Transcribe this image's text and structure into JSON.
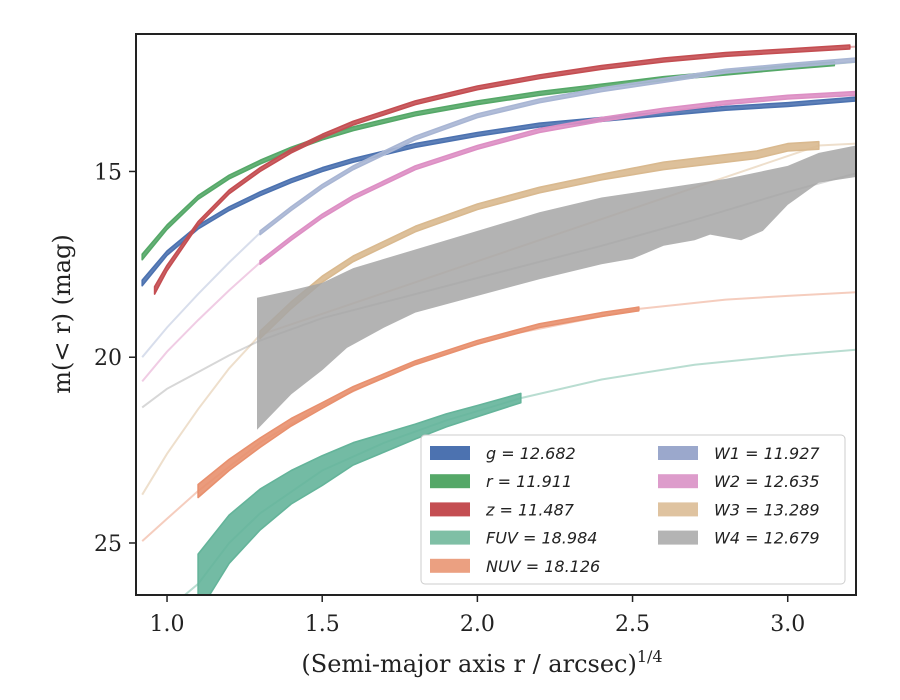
{
  "chart_data": {
    "type": "line",
    "xlabel": "(Semi-major axis r / arcsec)",
    "xlabel_sup": "1/4",
    "ylabel": "m(< r) (mag)",
    "xlim": [
      0.9,
      3.22
    ],
    "ylim": [
      26.4,
      11.3
    ],
    "xticks": [
      1.0,
      1.5,
      2.0,
      2.5,
      3.0
    ],
    "xtick_labels": [
      "1.0",
      "1.5",
      "2.0",
      "2.5",
      "3.0"
    ],
    "yticks": [
      15,
      20,
      25
    ],
    "ytick_labels": [
      "15",
      "20",
      "25"
    ],
    "grid": false,
    "legend_position": "lower-right",
    "series": [
      {
        "name": "g = 12.682",
        "color": "#4c72b0",
        "measured": [
          [
            0.92,
            18.0
          ],
          [
            1.0,
            17.2
          ],
          [
            1.1,
            16.5
          ],
          [
            1.2,
            16.0
          ],
          [
            1.3,
            15.6
          ],
          [
            1.4,
            15.25
          ],
          [
            1.5,
            14.95
          ],
          [
            1.6,
            14.7
          ],
          [
            1.8,
            14.3
          ],
          [
            2.0,
            14.0
          ],
          [
            2.2,
            13.75
          ],
          [
            2.4,
            13.6
          ],
          [
            2.6,
            13.45
          ],
          [
            2.8,
            13.3
          ],
          [
            3.0,
            13.2
          ],
          [
            3.22,
            13.05
          ]
        ],
        "width": [
          0.15,
          0.12,
          0.1,
          0.1,
          0.1,
          0.1,
          0.1,
          0.1,
          0.1,
          0.1,
          0.1,
          0.1,
          0.1,
          0.1,
          0.1,
          0.1
        ],
        "extrapolated": []
      },
      {
        "name": "r = 11.911",
        "color": "#55a868",
        "measured": [
          [
            0.92,
            17.3
          ],
          [
            1.0,
            16.5
          ],
          [
            1.1,
            15.7
          ],
          [
            1.2,
            15.15
          ],
          [
            1.3,
            14.75
          ],
          [
            1.4,
            14.4
          ],
          [
            1.5,
            14.1
          ],
          [
            1.6,
            13.85
          ],
          [
            1.8,
            13.45
          ],
          [
            2.0,
            13.15
          ],
          [
            2.2,
            12.9
          ],
          [
            2.4,
            12.7
          ],
          [
            2.6,
            12.5
          ],
          [
            2.8,
            12.35
          ],
          [
            3.0,
            12.2
          ],
          [
            3.15,
            12.1
          ]
        ],
        "width": [
          0.15,
          0.12,
          0.1,
          0.1,
          0.1,
          0.1,
          0.1,
          0.1,
          0.1,
          0.1,
          0.1,
          0.1,
          0.1,
          0.1,
          0.1,
          0.1
        ],
        "extrapolated": [
          [
            3.15,
            12.1
          ],
          [
            3.22,
            12.05
          ]
        ]
      },
      {
        "name": "z = 11.487",
        "color": "#c44e52",
        "measured": [
          [
            0.96,
            18.2
          ],
          [
            1.0,
            17.6
          ],
          [
            1.1,
            16.4
          ],
          [
            1.2,
            15.55
          ],
          [
            1.3,
            14.95
          ],
          [
            1.4,
            14.45
          ],
          [
            1.5,
            14.05
          ],
          [
            1.6,
            13.7
          ],
          [
            1.8,
            13.15
          ],
          [
            2.0,
            12.75
          ],
          [
            2.2,
            12.45
          ],
          [
            2.4,
            12.2
          ],
          [
            2.6,
            12.0
          ],
          [
            2.8,
            11.85
          ],
          [
            3.0,
            11.75
          ],
          [
            3.2,
            11.65
          ]
        ],
        "width": [
          0.2,
          0.15,
          0.1,
          0.1,
          0.1,
          0.1,
          0.1,
          0.1,
          0.1,
          0.1,
          0.1,
          0.1,
          0.1,
          0.1,
          0.1,
          0.1
        ],
        "extrapolated": [
          [
            3.2,
            11.65
          ],
          [
            3.22,
            11.64
          ]
        ]
      },
      {
        "name": "FUV = 18.984",
        "color": "#64b49a",
        "measured": [
          [
            1.1,
            26.1
          ],
          [
            1.2,
            24.9
          ],
          [
            1.3,
            24.1
          ],
          [
            1.4,
            23.5
          ],
          [
            1.5,
            23.05
          ],
          [
            1.6,
            22.6
          ],
          [
            1.7,
            22.3
          ],
          [
            1.8,
            22.0
          ],
          [
            1.9,
            21.7
          ],
          [
            2.0,
            21.45
          ],
          [
            2.14,
            21.1
          ]
        ],
        "width": [
          1.6,
          1.3,
          1.1,
          0.9,
          0.8,
          0.6,
          0.5,
          0.4,
          0.35,
          0.3,
          0.25
        ],
        "extrapolated": [
          [
            0.92,
            27.6
          ],
          [
            1.0,
            26.8
          ],
          [
            1.1,
            26.1
          ],
          [
            1.2,
            25.0
          ],
          [
            1.3,
            24.2
          ],
          [
            1.5,
            23.05
          ],
          [
            1.7,
            22.3
          ],
          [
            1.9,
            21.7
          ],
          [
            2.14,
            21.1
          ],
          [
            2.4,
            20.6
          ],
          [
            2.7,
            20.2
          ],
          [
            3.0,
            19.95
          ],
          [
            3.22,
            19.8
          ]
        ]
      },
      {
        "name": "NUV = 18.126",
        "color": "#e8906e",
        "measured": [
          [
            1.1,
            23.6
          ],
          [
            1.2,
            22.9
          ],
          [
            1.3,
            22.3
          ],
          [
            1.4,
            21.75
          ],
          [
            1.5,
            21.3
          ],
          [
            1.6,
            20.85
          ],
          [
            1.8,
            20.15
          ],
          [
            2.0,
            19.6
          ],
          [
            2.2,
            19.15
          ],
          [
            2.4,
            18.85
          ],
          [
            2.52,
            18.7
          ]
        ],
        "width": [
          0.35,
          0.3,
          0.25,
          0.2,
          0.15,
          0.12,
          0.1,
          0.1,
          0.1,
          0.1,
          0.1
        ],
        "extrapolated": [
          [
            0.92,
            24.95
          ],
          [
            1.0,
            24.35
          ],
          [
            1.1,
            23.6
          ],
          [
            1.3,
            22.3
          ],
          [
            1.5,
            21.3
          ],
          [
            1.8,
            20.15
          ],
          [
            2.1,
            19.4
          ],
          [
            2.52,
            18.7
          ],
          [
            2.8,
            18.45
          ],
          [
            3.0,
            18.35
          ],
          [
            3.22,
            18.25
          ]
        ]
      },
      {
        "name": "W1 = 11.927",
        "color": "#a9b6d4",
        "measured": [
          [
            1.3,
            16.65
          ],
          [
            1.4,
            16.0
          ],
          [
            1.5,
            15.4
          ],
          [
            1.6,
            14.9
          ],
          [
            1.8,
            14.1
          ],
          [
            2.0,
            13.5
          ],
          [
            2.2,
            13.1
          ],
          [
            2.4,
            12.8
          ],
          [
            2.6,
            12.55
          ],
          [
            2.8,
            12.3
          ],
          [
            3.0,
            12.15
          ],
          [
            3.22,
            12.0
          ]
        ],
        "width": [
          0.1,
          0.1,
          0.1,
          0.1,
          0.1,
          0.1,
          0.1,
          0.1,
          0.1,
          0.1,
          0.1,
          0.1
        ],
        "extrapolated": [
          [
            0.92,
            20.0
          ],
          [
            1.0,
            19.2
          ],
          [
            1.1,
            18.3
          ],
          [
            1.2,
            17.45
          ],
          [
            1.3,
            16.65
          ]
        ]
      },
      {
        "name": "W2 = 12.635",
        "color": "#dd8fc4",
        "measured": [
          [
            1.3,
            17.45
          ],
          [
            1.4,
            16.8
          ],
          [
            1.5,
            16.2
          ],
          [
            1.6,
            15.7
          ],
          [
            1.8,
            14.9
          ],
          [
            2.0,
            14.35
          ],
          [
            2.2,
            13.9
          ],
          [
            2.4,
            13.6
          ],
          [
            2.6,
            13.35
          ],
          [
            2.8,
            13.15
          ],
          [
            3.0,
            13.0
          ],
          [
            3.22,
            12.9
          ]
        ],
        "width": [
          0.1,
          0.1,
          0.1,
          0.1,
          0.1,
          0.1,
          0.1,
          0.1,
          0.1,
          0.1,
          0.1,
          0.1
        ],
        "extrapolated": [
          [
            0.92,
            20.65
          ],
          [
            1.0,
            19.85
          ],
          [
            1.1,
            19.0
          ],
          [
            1.2,
            18.2
          ],
          [
            1.3,
            17.45
          ]
        ]
      },
      {
        "name": "W3 = 13.289",
        "color": "#d9b98f",
        "measured": [
          [
            1.3,
            19.4
          ],
          [
            1.4,
            18.6
          ],
          [
            1.5,
            17.9
          ],
          [
            1.6,
            17.35
          ],
          [
            1.8,
            16.55
          ],
          [
            2.0,
            15.95
          ],
          [
            2.2,
            15.5
          ],
          [
            2.4,
            15.15
          ],
          [
            2.6,
            14.85
          ],
          [
            2.8,
            14.65
          ],
          [
            2.9,
            14.55
          ],
          [
            3.0,
            14.35
          ],
          [
            3.1,
            14.3
          ]
        ],
        "width": [
          0.2,
          0.18,
          0.16,
          0.15,
          0.15,
          0.15,
          0.15,
          0.15,
          0.2,
          0.2,
          0.2,
          0.2,
          0.2
        ],
        "extrapolated": [
          [
            0.92,
            23.7
          ],
          [
            1.0,
            22.6
          ],
          [
            1.1,
            21.4
          ],
          [
            1.2,
            20.3
          ],
          [
            1.3,
            19.4
          ],
          [
            3.1,
            14.3
          ],
          [
            3.22,
            14.25
          ]
        ]
      },
      {
        "name": "W4 = 12.679",
        "color": "#a6a6a6",
        "band_upper": [
          [
            1.29,
            18.4
          ],
          [
            1.4,
            18.2
          ],
          [
            1.5,
            18.0
          ],
          [
            1.6,
            17.6
          ],
          [
            1.8,
            17.1
          ],
          [
            2.0,
            16.6
          ],
          [
            2.2,
            16.1
          ],
          [
            2.4,
            15.7
          ],
          [
            2.6,
            15.45
          ],
          [
            2.8,
            15.2
          ],
          [
            3.0,
            14.85
          ],
          [
            3.1,
            14.5
          ],
          [
            3.22,
            14.3
          ]
        ],
        "band_lower": [
          [
            1.29,
            21.95
          ],
          [
            1.4,
            21.0
          ],
          [
            1.5,
            20.35
          ],
          [
            1.58,
            19.75
          ],
          [
            1.7,
            19.2
          ],
          [
            1.8,
            18.8
          ],
          [
            2.0,
            18.35
          ],
          [
            2.2,
            17.9
          ],
          [
            2.4,
            17.5
          ],
          [
            2.5,
            17.35
          ],
          [
            2.6,
            17.0
          ],
          [
            2.7,
            16.85
          ],
          [
            2.75,
            16.7
          ],
          [
            2.85,
            16.85
          ],
          [
            2.92,
            16.6
          ],
          [
            3.0,
            15.9
          ],
          [
            3.1,
            15.3
          ],
          [
            3.22,
            15.15
          ]
        ],
        "extrapolated": [
          [
            0.92,
            21.35
          ],
          [
            1.0,
            20.85
          ],
          [
            1.1,
            20.4
          ],
          [
            1.2,
            19.95
          ],
          [
            1.3,
            19.55
          ],
          [
            1.5,
            18.95
          ],
          [
            1.8,
            18.3
          ],
          [
            2.1,
            17.65
          ],
          [
            2.4,
            17.0
          ],
          [
            2.7,
            16.3
          ],
          [
            3.0,
            15.55
          ],
          [
            3.22,
            15.05
          ]
        ]
      }
    ],
    "legend": {
      "columns": [
        [
          {
            "label": "g = 12.682",
            "color": "#4c72b0"
          },
          {
            "label": "r = 11.911",
            "color": "#55a868"
          },
          {
            "label": "z = 11.487",
            "color": "#c44e52"
          },
          {
            "label": "FUV = 18.984",
            "color": "#7fbfa5"
          },
          {
            "label": "NUV = 18.126",
            "color": "#eba081"
          }
        ],
        [
          {
            "label": "W1 = 11.927",
            "color": "#9ba8cc"
          },
          {
            "label": "W2 = 12.635",
            "color": "#dd9ccb"
          },
          {
            "label": "W3 = 13.289",
            "color": "#dfc3a0"
          },
          {
            "label": "W4 = 12.679",
            "color": "#b4b4b4"
          }
        ]
      ]
    }
  }
}
